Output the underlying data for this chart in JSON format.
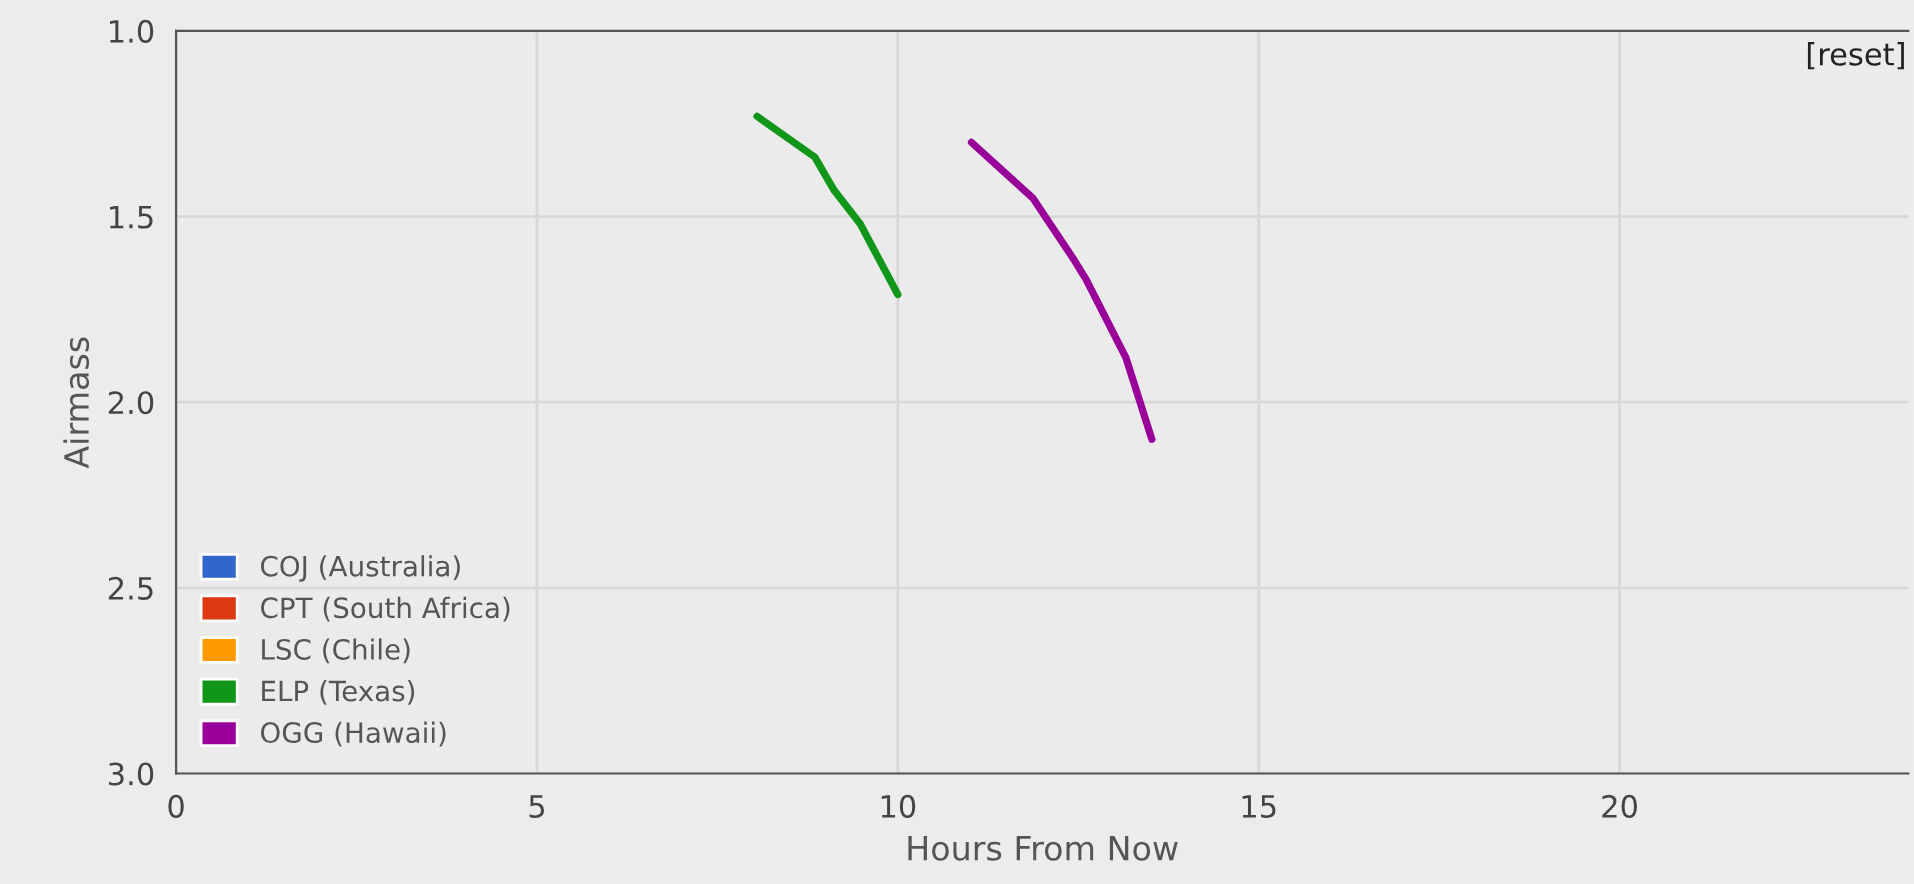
{
  "chart_data": {
    "type": "line",
    "xlabel": "Hours From Now",
    "ylabel": "Airmass",
    "xlim": [
      0,
      24
    ],
    "xticks": [
      0,
      5,
      10,
      15,
      20
    ],
    "ylim": [
      3.0,
      1.0
    ],
    "yticks": [
      {
        "value": 3.0,
        "label": "3.0"
      },
      {
        "value": 2.5,
        "label": "2.5"
      },
      {
        "value": 2.0,
        "label": "2.0"
      },
      {
        "value": 1.5,
        "label": "1.5"
      },
      {
        "value": 1.0,
        "label": "1.0"
      }
    ],
    "grid": true,
    "legend": "bottom left",
    "annotations": [
      "[reset]"
    ],
    "series": [
      {
        "name": "COJ (Australia)",
        "color": "#3366cc"
      },
      {
        "name": "CPT (South Africa)",
        "color": "#dc3912"
      },
      {
        "name": "LSC (Chile)",
        "color": "#ff9900"
      },
      {
        "name": "ELP (Texas)",
        "color": "#109618",
        "x": [
          8.05,
          8.85,
          9.12,
          9.48,
          10.0
        ],
        "values": [
          1.23,
          1.34,
          1.43,
          1.52,
          1.71
        ]
      },
      {
        "name": "OGG (Hawaii)",
        "color": "#990099",
        "x": [
          11.02,
          11.87,
          12.42,
          12.61,
          13.16,
          13.52
        ],
        "values": [
          1.3,
          1.45,
          1.61,
          1.67,
          1.88,
          2.1
        ]
      }
    ]
  }
}
